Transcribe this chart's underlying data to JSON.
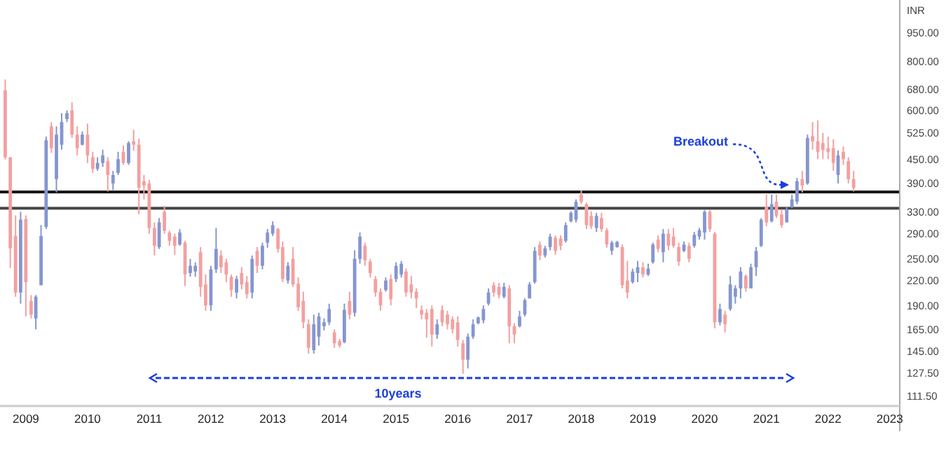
{
  "chart_data": {
    "type": "candlestick",
    "ylabel": "INR",
    "log": true,
    "grid": false,
    "xlim": [
      "2008-08",
      "2023-03"
    ],
    "xticks": [
      "2009",
      "2010",
      "2011",
      "2012",
      "2013",
      "2014",
      "2015",
      "2016",
      "2017",
      "2018",
      "2019",
      "2020",
      "2021",
      "2022",
      "2023"
    ],
    "ylim": [
      105,
      1150
    ],
    "yticks": [
      {
        "value": 111.5,
        "label": "111.50"
      },
      {
        "value": 127.5,
        "label": "127.50"
      },
      {
        "value": 145,
        "label": "145.00"
      },
      {
        "value": 165,
        "label": "165.00"
      },
      {
        "value": 190,
        "label": "190.00"
      },
      {
        "value": 220,
        "label": "220.00"
      },
      {
        "value": 250,
        "label": "250.00"
      },
      {
        "value": 290,
        "label": "290.00"
      },
      {
        "value": 330,
        "label": "330.00"
      },
      {
        "value": 390,
        "label": "390.00"
      },
      {
        "value": 450,
        "label": "450.00"
      },
      {
        "value": 525,
        "label": "525.00"
      },
      {
        "value": 600,
        "label": "600.00"
      },
      {
        "value": 680,
        "label": "680.00"
      },
      {
        "value": 800,
        "label": "800.00"
      },
      {
        "value": 950,
        "label": "950.00"
      }
    ],
    "ref_lines": [
      {
        "axis": "y",
        "value": 371,
        "color": "#111111"
      },
      {
        "axis": "y",
        "value": 337,
        "color": "#444444"
      }
    ],
    "annotations": [
      "Breakout",
      "10years"
    ],
    "x": [
      "2008-09",
      "2008-10",
      "2008-11",
      "2008-12",
      "2009-01",
      "2009-02",
      "2009-03",
      "2009-04",
      "2009-05",
      "2009-06",
      "2009-07",
      "2009-08",
      "2009-09",
      "2009-10",
      "2009-11",
      "2009-12",
      "2010-01",
      "2010-02",
      "2010-03",
      "2010-04",
      "2010-05",
      "2010-06",
      "2010-07",
      "2010-08",
      "2010-09",
      "2010-10",
      "2010-11",
      "2010-12",
      "2011-01",
      "2011-02",
      "2011-03",
      "2011-04",
      "2011-05",
      "2011-06",
      "2011-07",
      "2011-08",
      "2011-09",
      "2011-10",
      "2011-11",
      "2011-12",
      "2012-01",
      "2012-02",
      "2012-03",
      "2012-04",
      "2012-05",
      "2012-06",
      "2012-07",
      "2012-08",
      "2012-09",
      "2012-10",
      "2012-11",
      "2012-12",
      "2013-01",
      "2013-02",
      "2013-03",
      "2013-04",
      "2013-05",
      "2013-06",
      "2013-07",
      "2013-08",
      "2013-09",
      "2013-10",
      "2013-11",
      "2013-12",
      "2014-01",
      "2014-02",
      "2014-03",
      "2014-04",
      "2014-05",
      "2014-06",
      "2014-07",
      "2014-08",
      "2014-09",
      "2014-10",
      "2014-11",
      "2014-12",
      "2015-01",
      "2015-02",
      "2015-03",
      "2015-04",
      "2015-05",
      "2015-06",
      "2015-07",
      "2015-08",
      "2015-09",
      "2015-10",
      "2015-11",
      "2015-12",
      "2016-01",
      "2016-02",
      "2016-03",
      "2016-04",
      "2016-05",
      "2016-06",
      "2016-07",
      "2016-08",
      "2016-09",
      "2016-10",
      "2016-11",
      "2016-12",
      "2017-01",
      "2017-02",
      "2017-03",
      "2017-04",
      "2017-05",
      "2017-06",
      "2017-07",
      "2017-08",
      "2017-09",
      "2017-10",
      "2017-11",
      "2017-12",
      "2018-01",
      "2018-02",
      "2018-03",
      "2018-04",
      "2018-05",
      "2018-06",
      "2018-07",
      "2018-08",
      "2018-09",
      "2018-10",
      "2018-11",
      "2018-12",
      "2019-01",
      "2019-02",
      "2019-03",
      "2019-04",
      "2019-05",
      "2019-06",
      "2019-07",
      "2019-08",
      "2019-09",
      "2019-10",
      "2019-11",
      "2019-12",
      "2020-01",
      "2020-02",
      "2020-03",
      "2020-04",
      "2020-05",
      "2020-06",
      "2020-07",
      "2020-08",
      "2020-09",
      "2020-10",
      "2020-11",
      "2020-12",
      "2021-01",
      "2021-02",
      "2021-03",
      "2021-04",
      "2021-05",
      "2021-06",
      "2021-07",
      "2021-08",
      "2021-09",
      "2021-10",
      "2021-11",
      "2021-12",
      "2022-01",
      "2022-02",
      "2022-03",
      "2022-04",
      "2022-05",
      "2022-06"
    ],
    "ohlc": [
      [
        675,
        720,
        449,
        455
      ],
      [
        455,
        455,
        237,
        266
      ],
      [
        286,
        323,
        200,
        205
      ],
      [
        205,
        330,
        192,
        315
      ],
      [
        316,
        323,
        178,
        218
      ],
      [
        195,
        202,
        176,
        180
      ],
      [
        176,
        202,
        165,
        200
      ],
      [
        214,
        305,
        214,
        286
      ],
      [
        302,
        514,
        298,
        503
      ],
      [
        546,
        560,
        467,
        480
      ],
      [
        400,
        546,
        370,
        520
      ],
      [
        490,
        590,
        476,
        560
      ],
      [
        570,
        600,
        560,
        590
      ],
      [
        600,
        630,
        510,
        520
      ],
      [
        520,
        546,
        460,
        480
      ],
      [
        490,
        530,
        488,
        520
      ],
      [
        520,
        555,
        440,
        460
      ],
      [
        455,
        470,
        415,
        425
      ],
      [
        425,
        455,
        420,
        440
      ],
      [
        440,
        476,
        430,
        460
      ],
      [
        445,
        455,
        372,
        410
      ],
      [
        390,
        420,
        375,
        410
      ],
      [
        415,
        470,
        410,
        450
      ],
      [
        470,
        488,
        435,
        440
      ],
      [
        440,
        500,
        435,
        495
      ],
      [
        500,
        535,
        473,
        490
      ],
      [
        490,
        508,
        325,
        380
      ],
      [
        395,
        410,
        355,
        385
      ],
      [
        390,
        398,
        290,
        300
      ],
      [
        300,
        310,
        255,
        270
      ],
      [
        268,
        318,
        265,
        310
      ],
      [
        330,
        342,
        290,
        295
      ],
      [
        292,
        295,
        270,
        278
      ],
      [
        285,
        290,
        256,
        270
      ],
      [
        272,
        298,
        270,
        292
      ],
      [
        275,
        278,
        213,
        228
      ],
      [
        230,
        250,
        225,
        240
      ],
      [
        232,
        245,
        225,
        240
      ],
      [
        260,
        268,
        200,
        212
      ],
      [
        215,
        228,
        184,
        190
      ],
      [
        190,
        240,
        184,
        235
      ],
      [
        235,
        300,
        230,
        265
      ],
      [
        255,
        263,
        230,
        238
      ],
      [
        245,
        250,
        218,
        228
      ],
      [
        225,
        228,
        200,
        208
      ],
      [
        205,
        226,
        198,
        222
      ],
      [
        230,
        238,
        209,
        215
      ],
      [
        218,
        226,
        198,
        203
      ],
      [
        205,
        255,
        198,
        250
      ],
      [
        262,
        268,
        230,
        240
      ],
      [
        240,
        275,
        235,
        270
      ],
      [
        275,
        298,
        267,
        292
      ],
      [
        290,
        312,
        286,
        305
      ],
      [
        298,
        300,
        259,
        265
      ],
      [
        268,
        277,
        218,
        222
      ],
      [
        220,
        245,
        216,
        240
      ],
      [
        250,
        268,
        212,
        215
      ],
      [
        216,
        224,
        184,
        188
      ],
      [
        195,
        206,
        166,
        172
      ],
      [
        170,
        175,
        143,
        148
      ],
      [
        146,
        180,
        143,
        170
      ],
      [
        158,
        182,
        150,
        178
      ],
      [
        168,
        176,
        164,
        172
      ],
      [
        172,
        192,
        169,
        186
      ],
      [
        162,
        165,
        148,
        152
      ],
      [
        154,
        156,
        148,
        150
      ],
      [
        153,
        192,
        152,
        185
      ],
      [
        195,
        206,
        175,
        180
      ],
      [
        182,
        263,
        178,
        250
      ],
      [
        250,
        292,
        243,
        285
      ],
      [
        270,
        275,
        240,
        248
      ],
      [
        246,
        250,
        224,
        230
      ],
      [
        222,
        226,
        200,
        205
      ],
      [
        206,
        210,
        184,
        190
      ],
      [
        208,
        224,
        206,
        220
      ],
      [
        222,
        228,
        190,
        197
      ],
      [
        222,
        245,
        218,
        240
      ],
      [
        228,
        247,
        224,
        243
      ],
      [
        232,
        236,
        200,
        205
      ],
      [
        215,
        226,
        198,
        205
      ],
      [
        206,
        210,
        187,
        198
      ],
      [
        185,
        190,
        175,
        180
      ],
      [
        182,
        186,
        157,
        175
      ],
      [
        186,
        190,
        149,
        160
      ],
      [
        160,
        175,
        156,
        170
      ],
      [
        185,
        190,
        168,
        172
      ],
      [
        180,
        184,
        165,
        170
      ],
      [
        175,
        178,
        161,
        165
      ],
      [
        172,
        178,
        149,
        155
      ],
      [
        152,
        155,
        127,
        138
      ],
      [
        138,
        161,
        131,
        158
      ],
      [
        158,
        175,
        156,
        170
      ],
      [
        171,
        178,
        170,
        177
      ],
      [
        174,
        190,
        171,
        186
      ],
      [
        192,
        210,
        190,
        205
      ],
      [
        214,
        218,
        200,
        205
      ],
      [
        212,
        217,
        198,
        202
      ],
      [
        200,
        217,
        198,
        212
      ],
      [
        210,
        214,
        152,
        168
      ],
      [
        168,
        171,
        152,
        160
      ],
      [
        168,
        184,
        167,
        178
      ],
      [
        180,
        198,
        178,
        196
      ],
      [
        198,
        218,
        198,
        215
      ],
      [
        218,
        268,
        216,
        262
      ],
      [
        272,
        277,
        248,
        255
      ],
      [
        255,
        270,
        252,
        266
      ],
      [
        268,
        290,
        263,
        285
      ],
      [
        283,
        287,
        256,
        262
      ],
      [
        282,
        287,
        263,
        270
      ],
      [
        278,
        310,
        275,
        305
      ],
      [
        312,
        331,
        310,
        328
      ],
      [
        315,
        355,
        310,
        350
      ],
      [
        365,
        375,
        345,
        350
      ],
      [
        345,
        348,
        298,
        305
      ],
      [
        322,
        331,
        298,
        303
      ],
      [
        300,
        328,
        293,
        322
      ],
      [
        318,
        328,
        293,
        298
      ],
      [
        296,
        300,
        267,
        272
      ],
      [
        262,
        278,
        256,
        275
      ],
      [
        268,
        278,
        267,
        276
      ],
      [
        268,
        272,
        210,
        214
      ],
      [
        220,
        247,
        198,
        205
      ],
      [
        218,
        236,
        216,
        232
      ],
      [
        230,
        247,
        218,
        238
      ],
      [
        238,
        245,
        224,
        228
      ],
      [
        228,
        243,
        226,
        236
      ],
      [
        245,
        275,
        243,
        272
      ],
      [
        280,
        287,
        260,
        265
      ],
      [
        260,
        298,
        245,
        290
      ],
      [
        290,
        298,
        263,
        270
      ],
      [
        285,
        300,
        267,
        270
      ],
      [
        268,
        275,
        240,
        246
      ],
      [
        262,
        277,
        260,
        272
      ],
      [
        270,
        275,
        245,
        250
      ],
      [
        270,
        293,
        267,
        288
      ],
      [
        285,
        300,
        280,
        296
      ],
      [
        292,
        333,
        280,
        330
      ],
      [
        330,
        333,
        293,
        298
      ],
      [
        290,
        293,
        166,
        172
      ],
      [
        172,
        192,
        169,
        186
      ],
      [
        180,
        184,
        162,
        170
      ],
      [
        186,
        226,
        184,
        215
      ],
      [
        200,
        214,
        192,
        210
      ],
      [
        210,
        238,
        198,
        232
      ],
      [
        226,
        228,
        206,
        210
      ],
      [
        210,
        243,
        210,
        238
      ],
      [
        238,
        268,
        226,
        262
      ],
      [
        270,
        318,
        268,
        315
      ],
      [
        340,
        365,
        303,
        310
      ],
      [
        312,
        365,
        310,
        345
      ],
      [
        350,
        365,
        318,
        322
      ],
      [
        325,
        335,
        300,
        305
      ],
      [
        310,
        340,
        310,
        335
      ],
      [
        340,
        365,
        337,
        355
      ],
      [
        350,
        403,
        345,
        395
      ],
      [
        400,
        420,
        370,
        385
      ],
      [
        390,
        520,
        387,
        510
      ],
      [
        515,
        560,
        476,
        500
      ],
      [
        500,
        565,
        450,
        470
      ],
      [
        495,
        525,
        450,
        475
      ],
      [
        480,
        514,
        450,
        470
      ],
      [
        480,
        506,
        420,
        440
      ],
      [
        410,
        474,
        390,
        460
      ],
      [
        470,
        485,
        435,
        450
      ],
      [
        445,
        455,
        390,
        400
      ],
      [
        400,
        420,
        372,
        380
      ]
    ]
  }
}
